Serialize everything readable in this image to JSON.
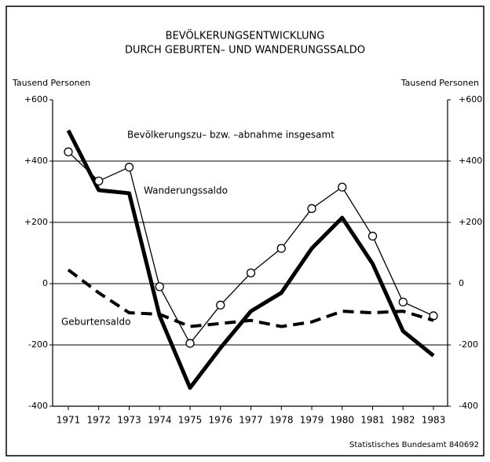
{
  "chart_data": {
    "type": "line",
    "title": "BEVÖLKERUNGSENTWICKLUNG",
    "subtitle": "DURCH GEBURTEN– UND WANDERUNGSSALDO",
    "y_label": "Tausend Personen",
    "y2_label": "Tausend Personen",
    "source": "Statistisches Bundesamt 840692",
    "categories": [
      "1971",
      "1972",
      "1973",
      "1974",
      "1975",
      "1976",
      "1977",
      "1978",
      "1979",
      "1980",
      "1981",
      "1982",
      "1983"
    ],
    "series": [
      {
        "name": "Bevölkerungszu– bzw. –abnahme insgesamt",
        "color": "#000000",
        "linewidth": 5,
        "linestyle": "solid",
        "marker": "none",
        "values": [
          500,
          305,
          295,
          -105,
          -340,
          -210,
          -90,
          -30,
          115,
          215,
          65,
          -155,
          -235
        ]
      },
      {
        "name": "Wanderungssaldo",
        "color": "#000000",
        "linewidth": 1.3,
        "linestyle": "solid",
        "marker": "circle",
        "values": [
          430,
          335,
          380,
          -10,
          -195,
          -70,
          35,
          115,
          245,
          315,
          155,
          -60,
          -105
        ]
      },
      {
        "name": "Geburtensaldo",
        "color": "#000000",
        "linewidth": 4,
        "linestyle": "dashed",
        "marker": "none",
        "values": [
          45,
          -30,
          -95,
          -100,
          -140,
          -130,
          -120,
          -140,
          -125,
          -90,
          -95,
          -90,
          -120
        ]
      }
    ],
    "ylim": [
      -400,
      600
    ],
    "yticks": [
      {
        "value": 600,
        "label": "+600"
      },
      {
        "value": 400,
        "label": "+400"
      },
      {
        "value": 200,
        "label": "+200"
      },
      0,
      {
        "value": -200,
        "label": "-200"
      },
      {
        "value": -400,
        "label": "-400"
      }
    ],
    "y2lim": [
      -400,
      600
    ],
    "y2ticks": [
      {
        "value": 600,
        "label": "+600"
      },
      {
        "value": 400,
        "label": "+400"
      },
      {
        "value": 200,
        "label": "+200"
      },
      0,
      {
        "value": -200,
        "label": "-200"
      },
      {
        "value": -400,
        "label": "-400"
      }
    ],
    "grid": true
  }
}
